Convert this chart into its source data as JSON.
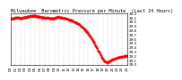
{
  "title": "Milwaukee  Barometric Pressure per Minute  (Last 24 Hours)",
  "bg_color": "#ffffff",
  "plot_bg_color": "#ffffff",
  "line_color": "#ff0000",
  "grid_color": "#bbbbbb",
  "ylim": [
    29.0,
    30.2
  ],
  "y_ticks": [
    29.0,
    29.1,
    29.2,
    29.3,
    29.4,
    29.5,
    29.6,
    29.7,
    29.8,
    29.9,
    30.0,
    30.1,
    30.2
  ],
  "pressure_profile": [
    30.08,
    30.09,
    30.1,
    30.1,
    30.09,
    30.11,
    30.12,
    30.13,
    30.14,
    30.15,
    30.14,
    30.13,
    30.12,
    30.11,
    30.1,
    30.1,
    30.09,
    30.08,
    30.1,
    30.12,
    30.11,
    30.1,
    30.09,
    30.07,
    30.05,
    30.03,
    30.0,
    29.97,
    29.93,
    29.88,
    29.82,
    29.75,
    29.67,
    29.58,
    29.48,
    29.37,
    29.26,
    29.15,
    29.07,
    29.05,
    29.08,
    29.12,
    29.14,
    29.16,
    29.18,
    29.19,
    29.2,
    29.21
  ],
  "title_fontsize": 3.8,
  "tick_fontsize": 3.0,
  "linewidth": 0.5,
  "marker": ".",
  "markersize": 0.6,
  "linestyle": "None"
}
